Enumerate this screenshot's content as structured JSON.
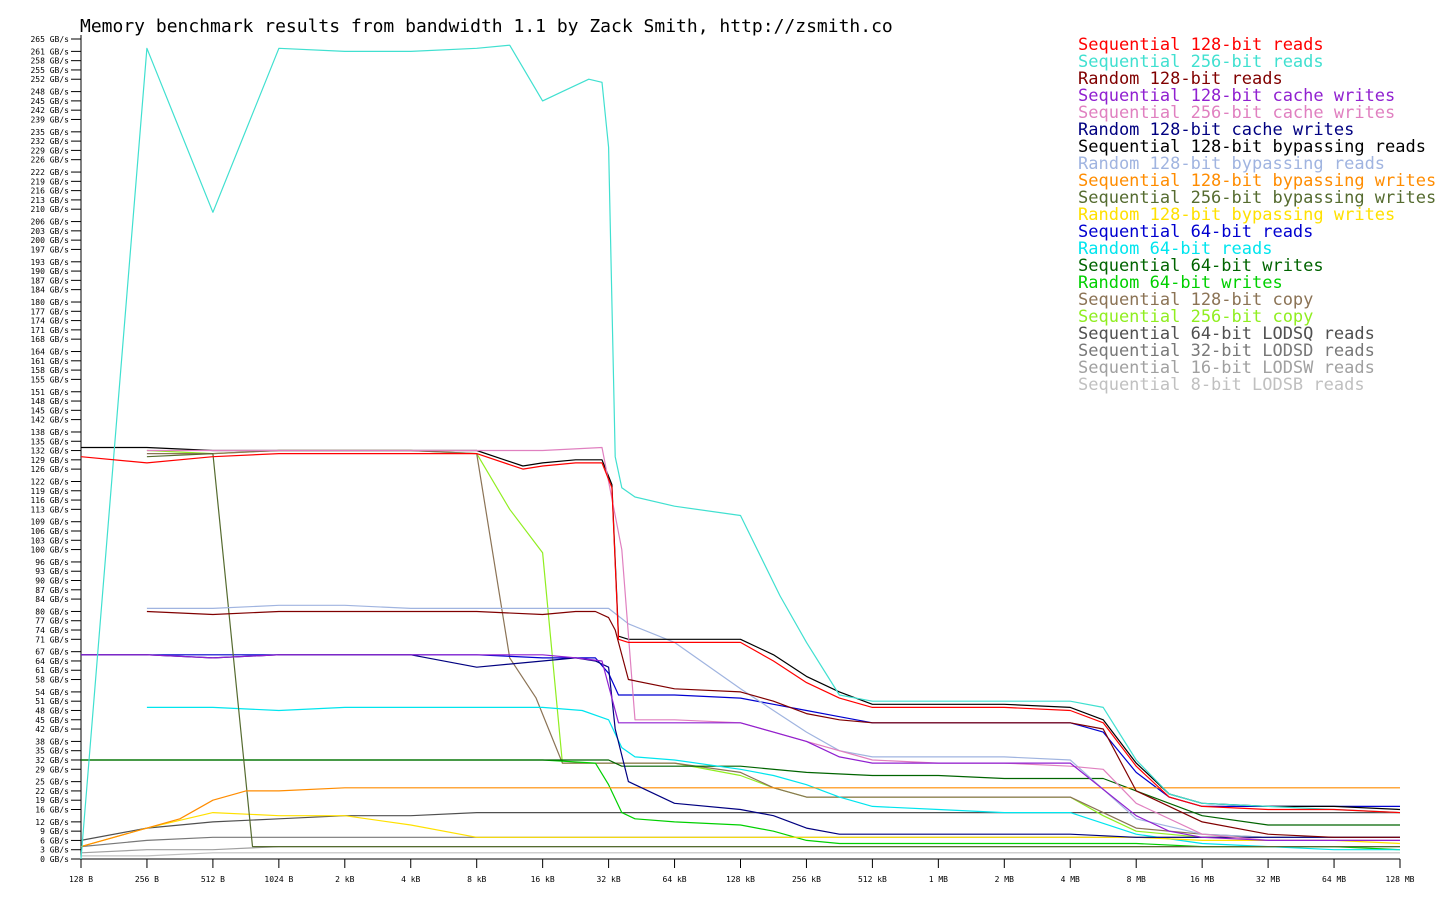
{
  "title": "Memory benchmark results from bandwidth 1.1 by Zack Smith, http://zsmith.co",
  "chart_data": {
    "type": "line",
    "title": "Memory benchmark results from bandwidth 1.1 by Zack Smith, http://zsmith.co",
    "xlabel": "",
    "ylabel": "",
    "ylim": [
      0,
      265
    ],
    "y_unit": "GB/s",
    "y_ticks": [
      0,
      3,
      6,
      9,
      12,
      16,
      19,
      22,
      25,
      29,
      32,
      35,
      38,
      42,
      45,
      48,
      51,
      54,
      58,
      61,
      64,
      67,
      71,
      74,
      77,
      80,
      84,
      87,
      90,
      93,
      96,
      100,
      103,
      106,
      109,
      113,
      116,
      119,
      122,
      126,
      129,
      132,
      135,
      138,
      142,
      145,
      148,
      151,
      155,
      158,
      161,
      164,
      168,
      171,
      174,
      177,
      180,
      184,
      187,
      190,
      193,
      197,
      200,
      203,
      206,
      210,
      213,
      216,
      219,
      222,
      226,
      229,
      232,
      235,
      239,
      242,
      245,
      248,
      252,
      255,
      258,
      261,
      265
    ],
    "y_tick_suffix": " GB/s",
    "categories": [
      "128 B",
      "256 B",
      "512 B",
      "1024 B",
      "2 kB",
      "4 kB",
      "8 kB",
      "16 kB",
      "32 kB",
      "64 kB",
      "128 kB",
      "256 kB",
      "512 kB",
      "1 MB",
      "2 MB",
      "4 MB",
      "8 MB",
      "16 MB",
      "32 MB",
      "64 MB",
      "128 MB"
    ],
    "grid": false,
    "legend_position": "top-right",
    "series": [
      {
        "name": "Sequential 128-bit reads",
        "color": "#ff0000",
        "x": [
          0,
          1,
          2,
          3,
          4,
          5,
          6,
          6.7,
          7,
          7.5,
          7.9,
          8.05,
          8.15,
          8.3,
          9,
          10,
          10.5,
          11,
          11.5,
          12,
          13,
          14,
          15,
          15.5,
          16,
          16.5,
          17,
          18,
          19,
          20
        ],
        "y": [
          130,
          128,
          130,
          131,
          131,
          131,
          131,
          126,
          127,
          128,
          128,
          120,
          71,
          70,
          70,
          70,
          64,
          57,
          52,
          49,
          49,
          49,
          48,
          44,
          30,
          20,
          17,
          16,
          16,
          15
        ]
      },
      {
        "name": "Sequential 256-bit reads",
        "color": "#40e0d0",
        "x": [
          0,
          1,
          2,
          3,
          4,
          5,
          6,
          6.5,
          7,
          7.3,
          7.7,
          7.9,
          8,
          8.1,
          8.2,
          8.4,
          9,
          10,
          10.6,
          11,
          11.5,
          12,
          13,
          14,
          15,
          15.5,
          16,
          16.5,
          17,
          18,
          19,
          20
        ],
        "y": [
          0,
          262,
          209,
          262,
          261,
          261,
          262,
          263,
          245,
          248,
          252,
          251,
          230,
          130,
          120,
          117,
          114,
          111,
          85,
          70,
          53,
          51,
          51,
          51,
          51,
          49,
          32,
          21,
          18,
          17,
          16,
          15
        ]
      },
      {
        "name": "Random 128-bit reads",
        "color": "#800000",
        "x": [
          1,
          2,
          3,
          4,
          5,
          6,
          7,
          7.5,
          7.8,
          8,
          8.1,
          8.3,
          9,
          10,
          10.5,
          11,
          11.5,
          12,
          13,
          14,
          15,
          15.5,
          16,
          17,
          18,
          19,
          20
        ],
        "y": [
          80,
          79,
          80,
          80,
          80,
          80,
          79,
          80,
          80,
          78,
          74,
          58,
          55,
          54,
          51,
          47,
          45,
          44,
          44,
          44,
          44,
          42,
          22,
          12,
          8,
          7,
          7
        ]
      },
      {
        "name": "Sequential 128-bit cache writes",
        "color": "#9020d0",
        "x": [
          0,
          1,
          2,
          3,
          4,
          5,
          6,
          7,
          7.5,
          7.9,
          8.15,
          8.3,
          9,
          10,
          10.5,
          11,
          11.5,
          12,
          13,
          14,
          15,
          16,
          16.5,
          17,
          18,
          19,
          20
        ],
        "y": [
          66,
          66,
          65,
          66,
          66,
          66,
          66,
          66,
          65,
          64,
          44,
          44,
          44,
          44,
          41,
          38,
          33,
          31,
          31,
          31,
          31,
          14,
          9,
          7,
          6,
          6,
          6
        ]
      },
      {
        "name": "Sequential 256-bit cache writes",
        "color": "#e080c0",
        "x": [
          1,
          2,
          3,
          4,
          5,
          6,
          7,
          7.9,
          8.2,
          8.4,
          9,
          10,
          11,
          12,
          13,
          14,
          15,
          15.5,
          16,
          17,
          18,
          19,
          20
        ],
        "y": [
          132,
          132,
          132,
          132,
          132,
          132,
          132,
          133,
          100,
          45,
          45,
          44,
          38,
          32,
          31,
          31,
          30,
          29,
          18,
          8,
          6,
          6,
          6
        ]
      },
      {
        "name": "Random 128-bit cache writes",
        "color": "#000080",
        "x": [
          0,
          1,
          2,
          3,
          4,
          5,
          6,
          7,
          7.5,
          7.8,
          8,
          8.1,
          8.3,
          9,
          10,
          10.5,
          11,
          11.5,
          12,
          13,
          14,
          15,
          16,
          17,
          18,
          19,
          20
        ],
        "y": [
          66,
          66,
          65,
          66,
          66,
          66,
          62,
          64,
          65,
          64,
          62,
          42,
          25,
          18,
          16,
          14,
          10,
          8,
          8,
          8,
          8,
          8,
          7,
          7,
          7,
          7,
          7
        ]
      },
      {
        "name": "Sequential 128-bit bypassing reads",
        "color": "#000000",
        "x": [
          0,
          1,
          2,
          3,
          4,
          5,
          6,
          6.7,
          7,
          7.5,
          7.9,
          8.05,
          8.15,
          8.3,
          9,
          10,
          10.5,
          11,
          11.5,
          12,
          13,
          14,
          15,
          15.5,
          16,
          16.5,
          17,
          18,
          19,
          20
        ],
        "y": [
          133,
          133,
          132,
          132,
          132,
          132,
          132,
          127,
          128,
          129,
          129,
          121,
          72,
          71,
          71,
          71,
          66,
          59,
          54,
          50,
          50,
          50,
          49,
          45,
          31,
          21,
          18,
          17,
          17,
          16
        ]
      },
      {
        "name": "Random 128-bit bypassing reads",
        "color": "#a0b4e0",
        "x": [
          1,
          2,
          3,
          4,
          5,
          6,
          7,
          8,
          8.3,
          9,
          10,
          10.5,
          11,
          11.5,
          12,
          13,
          14,
          15,
          16,
          17,
          18,
          19,
          20
        ],
        "y": [
          81,
          81,
          82,
          82,
          81,
          81,
          81,
          81,
          76,
          70,
          55,
          48,
          41,
          35,
          33,
          33,
          33,
          32,
          13,
          8,
          7,
          7,
          7
        ]
      },
      {
        "name": "Sequential 128-bit bypassing writes",
        "color": "#ff8c00",
        "x": [
          0,
          1,
          1.5,
          2,
          2.5,
          3,
          4,
          5,
          6,
          7,
          8,
          9,
          10,
          11,
          12,
          13,
          14,
          15,
          16,
          17,
          18,
          19,
          20
        ],
        "y": [
          4,
          10,
          13,
          19,
          22,
          22,
          23,
          23,
          23,
          23,
          23,
          23,
          23,
          23,
          23,
          23,
          23,
          23,
          23,
          23,
          23,
          23,
          23
        ]
      },
      {
        "name": "Sequential 256-bit bypassing writes",
        "color": "#556b2f",
        "x": [
          1,
          2,
          2.6,
          3,
          4,
          5,
          6,
          6.5,
          6.9,
          7.3,
          8,
          9,
          10,
          11,
          12,
          13,
          14,
          15,
          16,
          17,
          18,
          19,
          20
        ],
        "y": [
          130,
          131,
          4,
          4,
          4,
          4,
          4,
          4,
          4,
          4,
          4,
          4,
          4,
          4,
          4,
          4,
          4,
          4,
          4,
          4,
          4,
          4,
          4
        ]
      },
      {
        "name": "Random 128-bit bypassing writes",
        "color": "#ffe000",
        "x": [
          0,
          1,
          2,
          3,
          4,
          5,
          6,
          7,
          8,
          9,
          10,
          11,
          12,
          13,
          14,
          15,
          16,
          17,
          18,
          19,
          20
        ],
        "y": [
          4,
          10,
          15,
          14,
          14,
          11,
          7,
          7,
          7,
          7,
          7,
          7,
          7,
          7,
          7,
          7,
          7,
          6,
          6,
          6,
          5
        ]
      },
      {
        "name": "Sequential 64-bit reads",
        "color": "#0000d0",
        "x": [
          0,
          1,
          2,
          3,
          4,
          5,
          6,
          7,
          7.5,
          7.8,
          8,
          8.15,
          8.3,
          9,
          10,
          10.5,
          11,
          11.5,
          12,
          13,
          14,
          15,
          15.5,
          16,
          16.5,
          17,
          18,
          19,
          20
        ],
        "y": [
          66,
          66,
          66,
          66,
          66,
          66,
          66,
          65,
          65,
          65,
          60,
          53,
          53,
          53,
          52,
          50,
          48,
          46,
          44,
          44,
          44,
          44,
          41,
          28,
          20,
          17,
          17,
          17,
          17
        ]
      },
      {
        "name": "Random 64-bit reads",
        "color": "#00e5ee",
        "x": [
          1,
          2,
          3,
          4,
          5,
          6,
          7,
          7.6,
          8,
          8.2,
          8.4,
          9,
          10,
          10.5,
          11,
          11.5,
          12,
          13,
          14,
          15,
          16,
          17,
          18,
          19,
          20
        ],
        "y": [
          49,
          49,
          48,
          49,
          49,
          49,
          49,
          48,
          45,
          36,
          33,
          32,
          29,
          27,
          24,
          20,
          17,
          16,
          15,
          15,
          8,
          5,
          4,
          3,
          3
        ]
      },
      {
        "name": "Sequential 64-bit writes",
        "color": "#006400",
        "x": [
          0,
          1,
          2,
          3,
          4,
          5,
          6,
          7,
          8,
          8.2,
          9,
          10,
          11,
          12,
          13,
          14,
          15,
          15.5,
          16,
          17,
          18,
          19,
          20
        ],
        "y": [
          32,
          32,
          32,
          32,
          32,
          32,
          32,
          32,
          32,
          30,
          30,
          30,
          28,
          27,
          27,
          26,
          26,
          26,
          22,
          14,
          11,
          11,
          11
        ]
      },
      {
        "name": "Random 64-bit writes",
        "color": "#00d000",
        "x": [
          0,
          1,
          2,
          3,
          4,
          5,
          6,
          7,
          7.8,
          8,
          8.2,
          8.4,
          9,
          10,
          10.5,
          11,
          11.5,
          12,
          13,
          14,
          15,
          16,
          17,
          18,
          19,
          20
        ],
        "y": [
          32,
          32,
          32,
          32,
          32,
          32,
          32,
          32,
          31,
          24,
          15,
          13,
          12,
          11,
          9,
          6,
          5,
          5,
          5,
          5,
          5,
          5,
          4,
          4,
          4,
          3
        ]
      },
      {
        "name": "Sequential 128-bit copy",
        "color": "#8b7355",
        "x": [
          1,
          2,
          3,
          4,
          5,
          6,
          6.5,
          6.9,
          7.3,
          8,
          9,
          10,
          10.5,
          11,
          11.5,
          12,
          13,
          14,
          15,
          15.5,
          16,
          17,
          18,
          19,
          20
        ],
        "y": [
          131,
          131,
          132,
          132,
          132,
          131,
          65,
          52,
          31,
          31,
          31,
          28,
          23,
          20,
          20,
          20,
          20,
          20,
          20,
          15,
          10,
          8,
          7,
          7,
          7
        ]
      },
      {
        "name": "Sequential 256-bit copy",
        "color": "#90ee20",
        "x": [
          1,
          2,
          3,
          4,
          5,
          6,
          6.5,
          7,
          7.3,
          8,
          9,
          10,
          10.5,
          11,
          11.5,
          12,
          13,
          14,
          15,
          15.5,
          16,
          17,
          18,
          19,
          20
        ],
        "y": [
          132,
          131,
          132,
          132,
          132,
          131,
          113,
          99,
          31,
          31,
          31,
          27,
          23,
          20,
          20,
          20,
          20,
          20,
          20,
          14,
          9,
          7,
          7,
          7,
          7
        ]
      },
      {
        "name": "Sequential 64-bit LODSQ reads",
        "color": "#505050",
        "x": [
          0,
          1,
          2,
          3,
          4,
          5,
          6,
          7,
          8,
          9,
          10,
          11,
          12,
          13,
          14,
          15,
          16,
          17,
          18,
          19,
          20
        ],
        "y": [
          6,
          10,
          12,
          13,
          14,
          14,
          15,
          15,
          15,
          15,
          15,
          15,
          15,
          15,
          15,
          15,
          15,
          15,
          15,
          15,
          15
        ]
      },
      {
        "name": "Sequential 32-bit LODSD reads",
        "color": "#787878",
        "x": [
          0,
          1,
          2,
          3,
          4,
          5,
          6,
          7,
          8,
          9,
          10,
          11,
          12,
          13,
          14,
          15,
          16,
          17,
          18,
          19,
          20
        ],
        "y": [
          4,
          6,
          7,
          7,
          7,
          7,
          7,
          7,
          7,
          7,
          7,
          7,
          7,
          7,
          7,
          7,
          7,
          7,
          7,
          7,
          7
        ]
      },
      {
        "name": "Sequential 16-bit LODSW reads",
        "color": "#a0a0a0",
        "x": [
          0,
          1,
          2,
          3,
          4,
          5,
          6,
          7,
          8,
          9,
          10,
          11,
          12,
          13,
          14,
          15,
          16,
          17,
          18,
          19,
          20
        ],
        "y": [
          2,
          3,
          3,
          4,
          4,
          4,
          4,
          4,
          4,
          4,
          4,
          4,
          4,
          4,
          4,
          4,
          4,
          4,
          4,
          4,
          4
        ]
      },
      {
        "name": "Sequential 8-bit LODSB reads",
        "color": "#c0c0c0",
        "x": [
          0,
          1,
          2,
          3,
          4,
          5,
          6,
          7,
          8,
          9,
          10,
          11,
          12,
          13,
          14,
          15,
          16,
          17,
          18,
          19,
          20
        ],
        "y": [
          1,
          1,
          2,
          2,
          2,
          2,
          2,
          2,
          2,
          2,
          2,
          2,
          2,
          2,
          2,
          2,
          2,
          2,
          2,
          2,
          2
        ]
      }
    ]
  }
}
